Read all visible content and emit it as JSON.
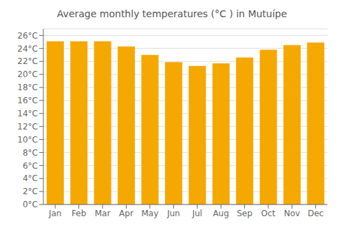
{
  "chart_data": {
    "type": "bar",
    "title": "Average monthly temperatures (°C ) in Mutuípe",
    "categories": [
      "Jan",
      "Feb",
      "Mar",
      "Apr",
      "May",
      "Jun",
      "Jul",
      "Aug",
      "Sep",
      "Oct",
      "Nov",
      "Dec"
    ],
    "values": [
      25.1,
      25.1,
      25.1,
      24.3,
      23.0,
      21.9,
      21.3,
      21.7,
      22.6,
      23.8,
      24.5,
      24.9
    ],
    "color": "#F5A800",
    "ylim": [
      0,
      27
    ],
    "yticks": [
      {
        "value": 0,
        "label": "0°C"
      },
      {
        "value": 2,
        "label": "2°C"
      },
      {
        "value": 4,
        "label": "4°C"
      },
      {
        "value": 6,
        "label": "6°C"
      },
      {
        "value": 8,
        "label": "8°C"
      },
      {
        "value": 10,
        "label": "10°C"
      },
      {
        "value": 12,
        "label": "12°C"
      },
      {
        "value": 14,
        "label": "14°C"
      },
      {
        "value": 16,
        "label": "16°C"
      },
      {
        "value": 18,
        "label": "18°C"
      },
      {
        "value": 20,
        "label": "20°C"
      },
      {
        "value": 22,
        "label": "22°C"
      },
      {
        "value": 24,
        "label": "24°C"
      },
      {
        "value": 26,
        "label": "26°C"
      }
    ],
    "grid": true
  }
}
